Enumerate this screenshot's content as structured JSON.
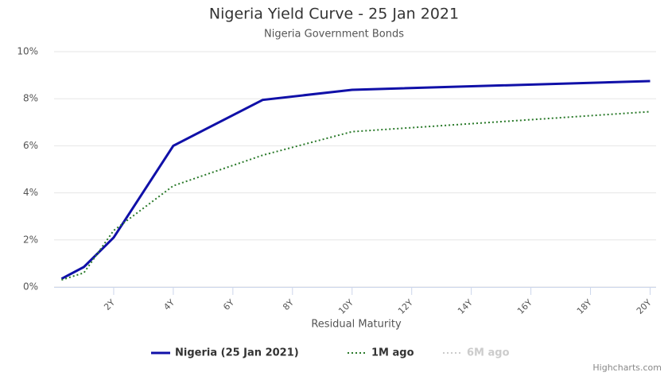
{
  "chart_data": {
    "type": "line",
    "title": "Nigeria Yield Curve - 25 Jan 2021",
    "subtitle": "Nigeria Government Bonds",
    "x_label": "Residual Maturity",
    "credits": "Highcharts.com",
    "x": [
      0.25,
      1,
      2,
      4,
      7,
      10,
      20
    ],
    "series": [
      {
        "name": "Nigeria (25 Jan 2021)",
        "color": "#1010a8",
        "dash": "solid",
        "visible": true,
        "values": [
          0.35,
          0.85,
          2.1,
          6.0,
          7.95,
          8.38,
          8.75
        ]
      },
      {
        "name": "1M ago",
        "color": "#2a7a2a",
        "dash": "dotted",
        "visible": true,
        "values": [
          0.3,
          0.6,
          2.4,
          4.3,
          5.6,
          6.6,
          7.45
        ]
      },
      {
        "name": "6M ago",
        "color": "#cccccc",
        "dash": "dotted",
        "visible": false,
        "values": [
          null,
          null,
          null,
          null,
          null,
          null,
          null
        ]
      }
    ],
    "xlim": [
      0,
      20.2
    ],
    "xticks": [
      {
        "value": 2,
        "label": "2Y"
      },
      {
        "value": 4,
        "label": "4Y"
      },
      {
        "value": 6,
        "label": "6Y"
      },
      {
        "value": 8,
        "label": "8Y"
      },
      {
        "value": 10,
        "label": "10Y"
      },
      {
        "value": 12,
        "label": "12Y"
      },
      {
        "value": 14,
        "label": "14Y"
      },
      {
        "value": 16,
        "label": "16Y"
      },
      {
        "value": 18,
        "label": "18Y"
      },
      {
        "value": 20,
        "label": "20Y"
      }
    ],
    "ylim": [
      0,
      10
    ],
    "yticks": [
      {
        "value": 0,
        "label": "0%"
      },
      {
        "value": 2,
        "label": "2%"
      },
      {
        "value": 4,
        "label": "4%"
      },
      {
        "value": 6,
        "label": "6%"
      },
      {
        "value": 8,
        "label": "8%"
      },
      {
        "value": 10,
        "label": "10%"
      }
    ],
    "grid": true
  }
}
